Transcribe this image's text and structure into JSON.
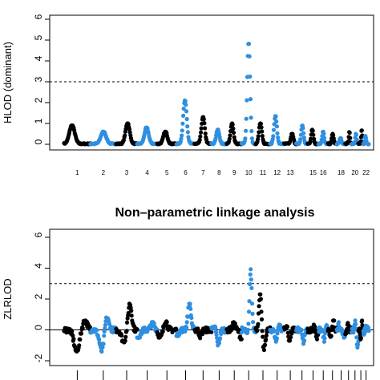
{
  "colors": {
    "odd_chromosomes": "#000000",
    "even_chromosomes": "#2f8fe0",
    "axis": "#000000",
    "threshold_line": "#000000"
  },
  "chart_data": [
    {
      "type": "scatter",
      "title": "",
      "ylabel": "HLOD (dominant)",
      "ylim": [
        0,
        6
      ],
      "yticks": [
        0,
        1,
        2,
        3,
        4,
        5,
        6
      ],
      "xtick_labels": [
        "1",
        "2",
        "3",
        "4",
        "5",
        "6",
        "7",
        "8",
        "9",
        "10",
        "11",
        "12",
        "13",
        "15",
        "16",
        "18",
        "20",
        "22"
      ],
      "threshold": 3,
      "threshold_style": "dashed",
      "chromosome_peaks": [
        {
          "chr": "1",
          "peak": 0.9
        },
        {
          "chr": "2",
          "peak": 0.6
        },
        {
          "chr": "3",
          "peak": 1.0
        },
        {
          "chr": "4",
          "peak": 0.8
        },
        {
          "chr": "5",
          "peak": 0.6
        },
        {
          "chr": "6",
          "peak": 2.1
        },
        {
          "chr": "7",
          "peak": 1.3
        },
        {
          "chr": "8",
          "peak": 0.7
        },
        {
          "chr": "9",
          "peak": 1.0
        },
        {
          "chr": "10",
          "peak": 4.9
        },
        {
          "chr": "11",
          "peak": 1.0
        },
        {
          "chr": "12",
          "peak": 1.35
        },
        {
          "chr": "13",
          "peak": 0.5
        },
        {
          "chr": "14",
          "peak": 0.9
        },
        {
          "chr": "15",
          "peak": 0.7
        },
        {
          "chr": "16",
          "peak": 0.6
        },
        {
          "chr": "17",
          "peak": 0.5
        },
        {
          "chr": "18",
          "peak": 0.3
        },
        {
          "chr": "19",
          "peak": 0.6
        },
        {
          "chr": "20",
          "peak": 0.5
        },
        {
          "chr": "21",
          "peak": 0.7
        },
        {
          "chr": "22",
          "peak": 0.4
        }
      ],
      "grid": false
    },
    {
      "type": "scatter",
      "title": "Non–parametric linkage analysis",
      "ylabel": "ZLRLOD",
      "ylim": [
        -2,
        6
      ],
      "yticks": [
        -2,
        0,
        2,
        4,
        6
      ],
      "xtick_labels": [],
      "threshold": 3,
      "threshold_style": "dashed",
      "baseline": 0,
      "chromosome_ranges": [
        {
          "chr": "1",
          "min": -1.4,
          "max": 0.6
        },
        {
          "chr": "2",
          "min": -1.6,
          "max": 1.2
        },
        {
          "chr": "3",
          "min": -0.8,
          "max": 1.7
        },
        {
          "chr": "4",
          "min": -0.5,
          "max": 0.5
        },
        {
          "chr": "5",
          "min": -0.5,
          "max": 0.6
        },
        {
          "chr": "6",
          "min": -0.4,
          "max": 1.7
        },
        {
          "chr": "7",
          "min": -0.9,
          "max": 0.7
        },
        {
          "chr": "8",
          "min": -1.0,
          "max": 0.3
        },
        {
          "chr": "9",
          "min": -0.6,
          "max": 0.5
        },
        {
          "chr": "10",
          "min": -0.6,
          "max": 4.0
        },
        {
          "chr": "11",
          "min": -1.3,
          "max": 2.3
        },
        {
          "chr": "12",
          "min": -0.8,
          "max": 0.6
        },
        {
          "chr": "13",
          "min": -0.7,
          "max": 0.3
        },
        {
          "chr": "14",
          "min": -1.2,
          "max": 0.4
        },
        {
          "chr": "15",
          "min": -0.6,
          "max": 0.4
        },
        {
          "chr": "16",
          "min": -0.9,
          "max": 0.5
        },
        {
          "chr": "17",
          "min": -0.5,
          "max": 0.6
        },
        {
          "chr": "18",
          "min": -0.6,
          "max": 0.5
        },
        {
          "chr": "19",
          "min": -0.4,
          "max": 0.5
        },
        {
          "chr": "20",
          "min": -1.2,
          "max": 0.6
        },
        {
          "chr": "21",
          "min": -0.6,
          "max": 0.6
        },
        {
          "chr": "22",
          "min": -0.3,
          "max": 0.3
        }
      ],
      "grid": false
    }
  ]
}
